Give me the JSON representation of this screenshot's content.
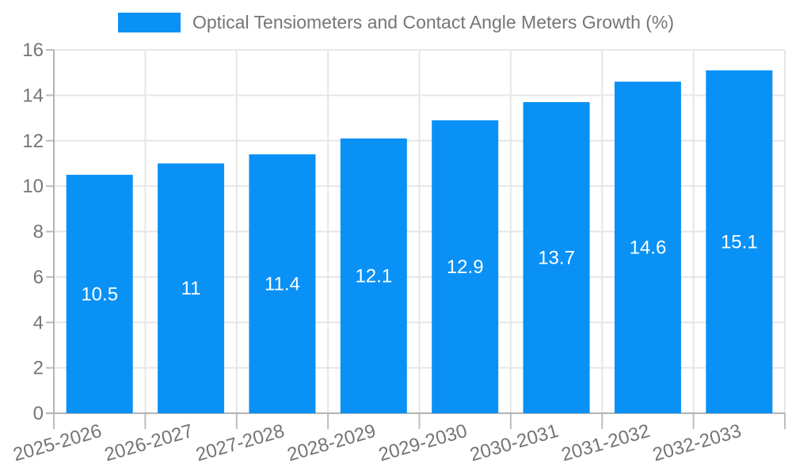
{
  "chart_data": {
    "type": "bar",
    "title": "Optical Tensiometers and Contact Angle Meters Growth (%)",
    "legend": {
      "position": "top",
      "label": "Optical Tensiometers and Contact Angle Meters Growth (%)"
    },
    "categories": [
      "2025-2026",
      "2026-2027",
      "2027-2028",
      "2028-2029",
      "2029-2030",
      "2030-2031",
      "2031-2032",
      "2032-2033"
    ],
    "series": [
      {
        "name": "Optical Tensiometers and Contact Angle Meters Growth (%)",
        "values": [
          10.5,
          11,
          11.4,
          12.1,
          12.9,
          13.7,
          14.6,
          15.1
        ],
        "display_labels": [
          "10.5",
          "11",
          "11.4",
          "12.1",
          "12.9",
          "13.7",
          "14.6",
          "15.1"
        ]
      }
    ],
    "xlabel": "",
    "ylabel": "",
    "ylim": [
      0,
      16
    ],
    "ytick_step": 2,
    "ytick_labels": [
      "0",
      "2",
      "4",
      "6",
      "8",
      "10",
      "12",
      "14",
      "16"
    ],
    "grid": true,
    "x_tick_rotation_deg": -16,
    "value_labels_inside_bars": true,
    "colors": {
      "bar": "#0a91f6",
      "bar_value_text": "#ffffff",
      "axis_text": "#757575",
      "legend_text": "#757575",
      "gridline": "#e6e6e6",
      "axis_line": "#b3b3b3",
      "tick_mark": "#bdbdbd",
      "background": "#ffffff"
    }
  }
}
